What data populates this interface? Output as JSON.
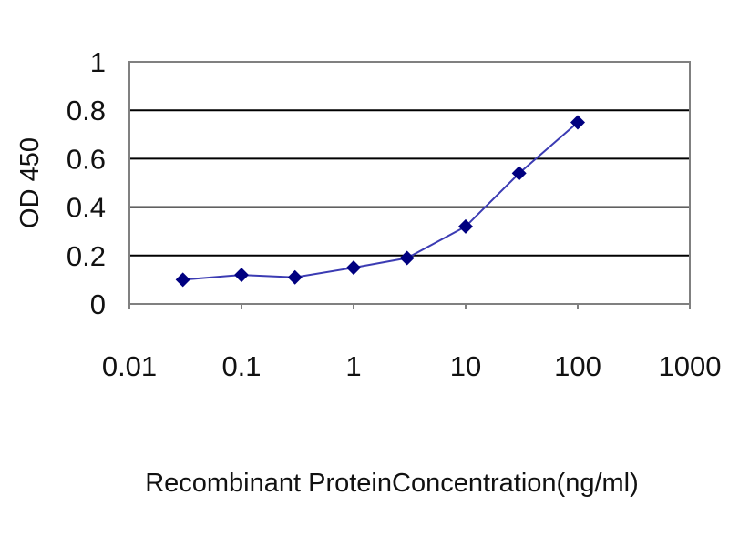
{
  "chart_data": {
    "type": "line",
    "title": "",
    "xlabel": "Recombinant ProteinConcentration(ng/ml)",
    "ylabel": "OD 450",
    "x_scale": "log",
    "xlim": [
      0.01,
      1000
    ],
    "ylim": [
      0,
      1
    ],
    "x_ticks": [
      "0.01",
      "0.1",
      "1",
      "10",
      "100",
      "1000"
    ],
    "y_ticks": [
      "0",
      "0.2",
      "0.4",
      "0.6",
      "0.8",
      "1"
    ],
    "grid": "horizontal",
    "legend": "none",
    "colors": {
      "line": "#3b3bb3",
      "marker": "#000080",
      "gridline": "#000000",
      "frame": "#808080"
    },
    "series": [
      {
        "marker": "diamond",
        "points": [
          {
            "x": 0.03,
            "y": 0.1
          },
          {
            "x": 0.1,
            "y": 0.12
          },
          {
            "x": 0.3,
            "y": 0.11
          },
          {
            "x": 1,
            "y": 0.15
          },
          {
            "x": 3,
            "y": 0.19
          },
          {
            "x": 10,
            "y": 0.32
          },
          {
            "x": 30,
            "y": 0.54
          },
          {
            "x": 100,
            "y": 0.75
          }
        ]
      }
    ]
  }
}
